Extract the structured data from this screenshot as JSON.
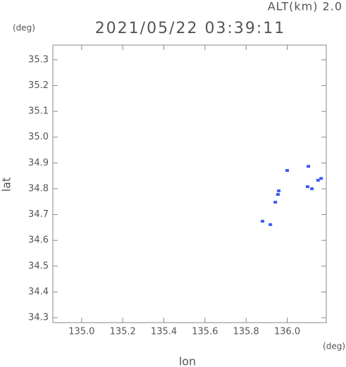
{
  "chart_data": {
    "type": "scatter",
    "title": "2021/05/22 03:39:11",
    "annotation": "ALT(km) 2.0",
    "y_unit": "(deg)",
    "x_unit": "(deg)",
    "xlabel": "lon",
    "ylabel": "lat",
    "color": "#3f5ff0",
    "xlim": [
      134.86,
      136.19
    ],
    "ylim": [
      34.281,
      35.357
    ],
    "xticks": [
      {
        "value": 135,
        "label": "135.0"
      },
      135.2,
      135.4,
      135.6,
      135.8,
      {
        "value": 136,
        "label": "136.0"
      }
    ],
    "yticks": [
      34.3,
      34.4,
      34.5,
      34.6,
      34.7,
      34.8,
      34.9,
      {
        "value": 35,
        "label": "35.0"
      },
      35.1,
      35.2,
      35.3
    ],
    "x": [
      136.0,
      136.103,
      136.165,
      136.15,
      135.959,
      135.955,
      135.942,
      136.099,
      136.12,
      135.88,
      135.918
    ],
    "y": [
      34.871,
      34.887,
      34.84,
      34.833,
      34.792,
      34.778,
      34.748,
      34.808,
      34.8,
      34.674,
      34.661
    ]
  }
}
